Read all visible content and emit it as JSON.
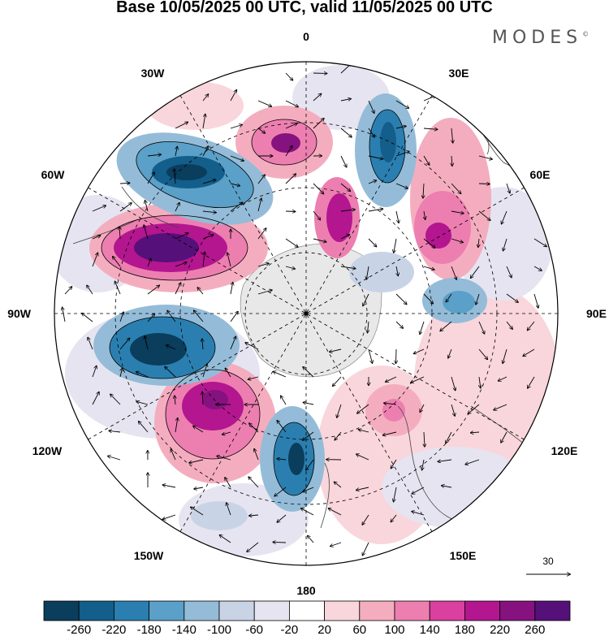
{
  "title": "Base 10/05/2025 00 UTC, valid 11/05/2025 00 UTC",
  "brand": "MODES",
  "brand_mark": "©",
  "longitude_labels": [
    "0",
    "30E",
    "60E",
    "90E",
    "120E",
    "150E",
    "180",
    "150W",
    "120W",
    "90W",
    "60W",
    "30W"
  ],
  "vector_reference": "30",
  "colorbar": {
    "tick_labels": [
      "-260",
      "-220",
      "-180",
      "-140",
      "-100",
      "-60",
      "-20",
      "20",
      "60",
      "100",
      "140",
      "180",
      "220",
      "260"
    ],
    "colors": [
      "#0b3d5c",
      "#135e8a",
      "#2a7fb0",
      "#5aa0c8",
      "#94bcd8",
      "#c8d4e6",
      "#e6e4f0",
      "#ffffff",
      "#f9d6db",
      "#f4adbf",
      "#ec7fb0",
      "#d9409f",
      "#b3168f",
      "#86127f",
      "#561079"
    ]
  },
  "map_features": [
    "land-outline-icon",
    "wind-vector-icon",
    "contour-fill-icon"
  ]
}
